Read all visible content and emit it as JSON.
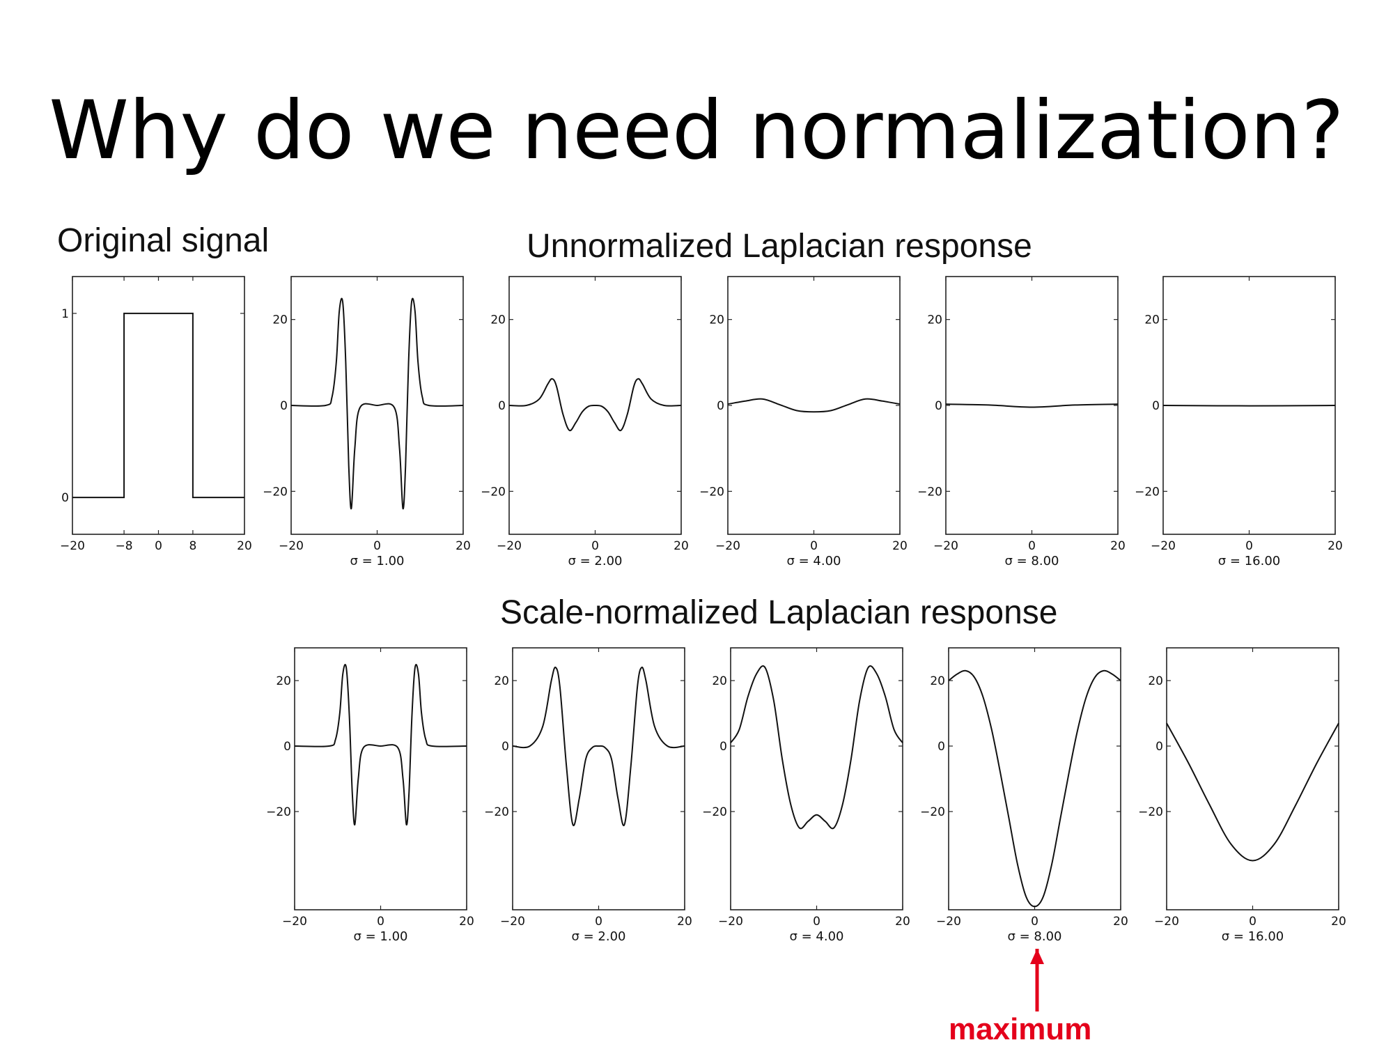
{
  "title": "Why do we need normalization?",
  "labels": {
    "original": "Original signal",
    "unnormalized": "Unnormalized Laplacian response",
    "normalized": "Scale-normalized Laplacian response",
    "maximum": "maximum"
  },
  "colors": {
    "annotation": "#e4001b",
    "line": "#111111"
  },
  "chart_data": [
    {
      "id": "original",
      "type": "line",
      "xlabel": "",
      "xlim": [
        -20,
        20
      ],
      "ylim": [
        -0.2,
        1.2
      ],
      "xticks": [
        -20,
        -8,
        0,
        8,
        20
      ],
      "xtick_labels": [
        "−20",
        "−8",
        "0",
        "8",
        "20"
      ],
      "yticks": [
        0,
        1
      ],
      "ytick_labels": [
        "0",
        "1"
      ],
      "series": [
        {
          "x": [
            -20,
            -8,
            -8,
            8,
            8,
            20
          ],
          "y": [
            0,
            0,
            1,
            1,
            0,
            0
          ]
        }
      ]
    },
    {
      "id": "unnorm-1",
      "type": "line",
      "xlabel": "σ = 1.00",
      "xlim": [
        -20,
        20
      ],
      "ylim": [
        -30,
        30
      ],
      "xticks": [
        -20,
        0,
        20
      ],
      "xtick_labels": [
        "−20",
        "0",
        "20"
      ],
      "yticks": [
        20,
        0,
        -20
      ],
      "ytick_labels": [
        "20",
        "0",
        "−20"
      ],
      "series": [
        {
          "x": [
            -20,
            -12,
            -10.5,
            -9.5,
            -8.8,
            -8,
            -7.3,
            -6.6,
            -6,
            -5.2,
            -4,
            0,
            4,
            5.2,
            6,
            6.6,
            7.3,
            8,
            8.8,
            9.5,
            10.5,
            12,
            20
          ],
          "y": [
            0,
            0,
            2,
            10,
            22,
            24,
            10,
            -14,
            -24,
            -10,
            -0.5,
            0,
            -0.5,
            -10,
            -24,
            -14,
            10,
            24,
            22,
            10,
            2,
            0,
            0
          ]
        }
      ]
    },
    {
      "id": "unnorm-2",
      "type": "line",
      "xlabel": "σ = 2.00",
      "xlim": [
        -20,
        20
      ],
      "ylim": [
        -30,
        30
      ],
      "xticks": [
        -20,
        0,
        20
      ],
      "xtick_labels": [
        "−20",
        "0",
        "20"
      ],
      "yticks": [
        20,
        0,
        -20
      ],
      "ytick_labels": [
        "20",
        "0",
        "−20"
      ],
      "series": [
        {
          "x": [
            -20,
            -16,
            -13,
            -11,
            -10,
            -9,
            -7.5,
            -6,
            -4.5,
            -3,
            -1.5,
            0,
            1.5,
            3,
            4.5,
            6,
            7.5,
            9,
            10,
            11,
            13,
            16,
            20
          ],
          "y": [
            0,
            0,
            1.5,
            5,
            6.2,
            4.5,
            -2,
            -5.8,
            -4,
            -1.5,
            -0.2,
            0,
            -0.2,
            -1.5,
            -4,
            -5.8,
            -2,
            4.5,
            6.2,
            5,
            1.5,
            0,
            0
          ]
        }
      ]
    },
    {
      "id": "unnorm-4",
      "type": "line",
      "xlabel": "σ = 4.00",
      "xlim": [
        -20,
        20
      ],
      "ylim": [
        -30,
        30
      ],
      "xticks": [
        -20,
        0,
        20
      ],
      "xtick_labels": [
        "−20",
        "0",
        "20"
      ],
      "yticks": [
        20,
        0,
        -20
      ],
      "ytick_labels": [
        "20",
        "0",
        "−20"
      ],
      "series": [
        {
          "x": [
            -20,
            -16,
            -12,
            -8,
            -4,
            0,
            4,
            8,
            12,
            16,
            20
          ],
          "y": [
            0.3,
            1,
            1.5,
            0.2,
            -1.2,
            -1.5,
            -1.2,
            0.2,
            1.5,
            1,
            0.3
          ]
        }
      ]
    },
    {
      "id": "unnorm-8",
      "type": "line",
      "xlabel": "σ = 8.00",
      "xlim": [
        -20,
        20
      ],
      "ylim": [
        -30,
        30
      ],
      "xticks": [
        -20,
        0,
        20
      ],
      "xtick_labels": [
        "−20",
        "0",
        "20"
      ],
      "yticks": [
        20,
        0,
        -20
      ],
      "ytick_labels": [
        "20",
        "0",
        "−20"
      ],
      "series": [
        {
          "x": [
            -20,
            -10,
            0,
            10,
            20
          ],
          "y": [
            0.3,
            0.1,
            -0.4,
            0.1,
            0.3
          ]
        }
      ]
    },
    {
      "id": "unnorm-16",
      "type": "line",
      "xlabel": "σ = 16.00",
      "xlim": [
        -20,
        20
      ],
      "ylim": [
        -30,
        30
      ],
      "xticks": [
        -20,
        0,
        20
      ],
      "xtick_labels": [
        "−20",
        "0",
        "20"
      ],
      "yticks": [
        20,
        0,
        -20
      ],
      "ytick_labels": [
        "20",
        "0",
        "−20"
      ],
      "series": [
        {
          "x": [
            -20,
            0,
            20
          ],
          "y": [
            0,
            -0.1,
            0
          ]
        }
      ]
    },
    {
      "id": "norm-1",
      "type": "line",
      "xlabel": "σ = 1.00",
      "xlim": [
        -20,
        20
      ],
      "ylim": [
        -50,
        30
      ],
      "xticks": [
        -20,
        0,
        20
      ],
      "xtick_labels": [
        "−20",
        "0",
        "20"
      ],
      "yticks": [
        20,
        0,
        -20
      ],
      "ytick_labels": [
        "20",
        "0",
        "−20"
      ],
      "series": [
        {
          "x": [
            -20,
            -12,
            -10.5,
            -9.5,
            -8.8,
            -8,
            -7.3,
            -6.6,
            -6,
            -5.2,
            -4,
            0,
            4,
            5.2,
            6,
            6.6,
            7.3,
            8,
            8.8,
            9.5,
            10.5,
            12,
            20
          ],
          "y": [
            0,
            0,
            2,
            10,
            22,
            24,
            10,
            -14,
            -24,
            -10,
            -0.5,
            0,
            -0.5,
            -10,
            -24,
            -14,
            10,
            24,
            22,
            10,
            2,
            0,
            0
          ]
        }
      ]
    },
    {
      "id": "norm-2",
      "type": "line",
      "xlabel": "σ = 2.00",
      "xlim": [
        -20,
        20
      ],
      "ylim": [
        -50,
        30
      ],
      "xticks": [
        -20,
        0,
        20
      ],
      "xtick_labels": [
        "−20",
        "0",
        "20"
      ],
      "yticks": [
        20,
        0,
        -20
      ],
      "ytick_labels": [
        "20",
        "0",
        "−20"
      ],
      "series": [
        {
          "x": [
            -20,
            -16,
            -13,
            -11,
            -10,
            -9,
            -7.5,
            -6,
            -4.5,
            -3,
            -1.5,
            0,
            1.5,
            3,
            4.5,
            6,
            7.5,
            9,
            10,
            11,
            13,
            16,
            20
          ],
          "y": [
            0,
            0,
            6,
            20,
            24,
            18,
            -6,
            -24,
            -16,
            -4,
            -0.5,
            0,
            -0.5,
            -4,
            -16,
            -24,
            -6,
            18,
            24,
            20,
            6,
            0,
            0
          ]
        }
      ]
    },
    {
      "id": "norm-4",
      "type": "line",
      "xlabel": "σ = 4.00",
      "xlim": [
        -20,
        20
      ],
      "ylim": [
        -50,
        30
      ],
      "xticks": [
        -20,
        0,
        20
      ],
      "xtick_labels": [
        "−20",
        "0",
        "20"
      ],
      "yticks": [
        20,
        0,
        -20
      ],
      "ytick_labels": [
        "20",
        "0",
        "−20"
      ],
      "series": [
        {
          "x": [
            -20,
            -18,
            -16,
            -14,
            -12,
            -10,
            -8,
            -6,
            -4,
            -2,
            0,
            2,
            4,
            6,
            8,
            10,
            12,
            14,
            16,
            18,
            20
          ],
          "y": [
            1,
            5,
            15,
            22,
            24,
            14,
            -4,
            -18,
            -25,
            -23,
            -21,
            -23,
            -25,
            -18,
            -4,
            14,
            24,
            22,
            15,
            5,
            1
          ]
        }
      ]
    },
    {
      "id": "norm-8",
      "type": "line",
      "xlabel": "σ = 8.00",
      "xlim": [
        -20,
        20
      ],
      "ylim": [
        -50,
        30
      ],
      "xticks": [
        -20,
        0,
        20
      ],
      "xtick_labels": [
        "−20",
        "0",
        "20"
      ],
      "yticks": [
        20,
        0,
        -20
      ],
      "ytick_labels": [
        "20",
        "0",
        "−20"
      ],
      "series": [
        {
          "x": [
            -20,
            -18,
            -16,
            -14,
            -12,
            -10,
            -8,
            -6,
            -4,
            -2,
            0,
            2,
            4,
            6,
            8,
            10,
            12,
            14,
            16,
            18,
            20
          ],
          "y": [
            20,
            22,
            23,
            21,
            15,
            5,
            -8,
            -22,
            -36,
            -46,
            -49,
            -46,
            -36,
            -22,
            -8,
            5,
            15,
            21,
            23,
            22,
            20
          ]
        }
      ]
    },
    {
      "id": "norm-16",
      "type": "line",
      "xlabel": "σ = 16.00",
      "xlim": [
        -20,
        20
      ],
      "ylim": [
        -50,
        30
      ],
      "xticks": [
        -20,
        0,
        20
      ],
      "xtick_labels": [
        "−20",
        "0",
        "20"
      ],
      "yticks": [
        20,
        0,
        -20
      ],
      "ytick_labels": [
        "20",
        "0",
        "−20"
      ],
      "series": [
        {
          "x": [
            -20,
            -15,
            -10,
            -5,
            0,
            5,
            10,
            15,
            20
          ],
          "y": [
            7,
            -5,
            -18,
            -30,
            -35,
            -30,
            -18,
            -5,
            7
          ]
        }
      ]
    }
  ]
}
